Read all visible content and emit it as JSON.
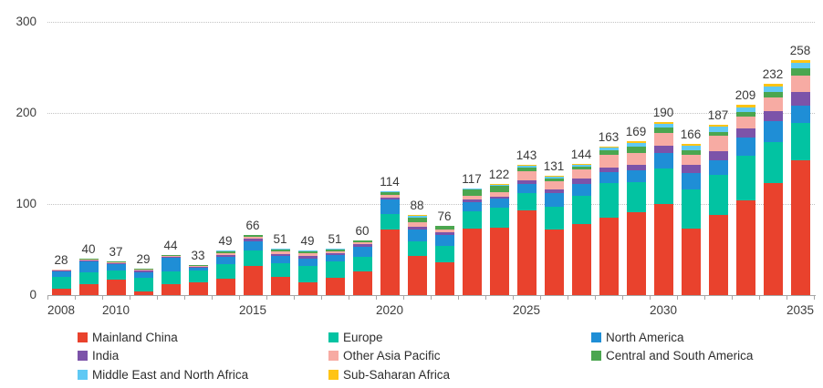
{
  "chart_data": {
    "type": "bar",
    "stacked": true,
    "title": "",
    "xlabel": "",
    "ylabel": "",
    "ylim": [
      0,
      300
    ],
    "yticks": [
      0,
      100,
      200,
      300
    ],
    "grid": "horizontal-dotted",
    "x": [
      2008,
      2009,
      2010,
      2011,
      2012,
      2013,
      2014,
      2015,
      2016,
      2017,
      2018,
      2019,
      2020,
      2021,
      2022,
      2023,
      2024,
      2025,
      2026,
      2027,
      2028,
      2029,
      2030,
      2031,
      2032,
      2033,
      2034,
      2035
    ],
    "x_tick_labels": [
      "2008",
      "2010",
      "2015",
      "2020",
      "2025",
      "2030",
      "2035"
    ],
    "x_tick_years": [
      2008,
      2010,
      2015,
      2020,
      2025,
      2030,
      2035
    ],
    "totals": [
      28,
      40,
      37,
      29,
      44,
      33,
      49,
      66,
      51,
      49,
      51,
      60,
      114,
      88,
      76,
      117,
      122,
      143,
      131,
      144,
      163,
      169,
      190,
      166,
      187,
      209,
      232,
      258
    ],
    "series": [
      {
        "name": "Mainland China",
        "color": "#e9422d",
        "values": [
          7,
          12,
          17,
          4,
          12,
          14,
          18,
          32,
          20,
          14,
          19,
          26,
          72,
          43,
          36,
          73,
          74,
          93,
          72,
          78,
          85,
          91,
          100,
          73,
          88,
          104,
          123,
          148
        ]
      },
      {
        "name": "Europe",
        "color": "#02c3a2",
        "values": [
          13,
          13,
          10,
          15,
          14,
          13,
          16,
          17,
          15,
          18,
          18,
          16,
          17,
          16,
          18,
          19,
          22,
          19,
          25,
          31,
          38,
          33,
          39,
          43,
          44,
          49,
          45,
          41
        ]
      },
      {
        "name": "North America",
        "color": "#1f8ed6",
        "values": [
          6,
          12,
          7,
          6,
          15,
          3,
          8,
          10,
          8,
          8,
          7,
          11,
          16,
          13,
          12,
          10,
          10,
          10,
          15,
          13,
          12,
          13,
          17,
          18,
          16,
          20,
          23,
          19
        ]
      },
      {
        "name": "India",
        "color": "#7c53a9",
        "values": [
          1,
          1,
          1,
          2,
          1,
          1,
          2,
          3,
          2,
          3,
          2,
          3,
          2,
          3,
          3,
          3,
          2,
          4,
          4,
          6,
          5,
          6,
          8,
          9,
          10,
          10,
          11,
          15
        ]
      },
      {
        "name": "Other Asia Pacific",
        "color": "#f7aba3",
        "values": [
          1,
          1,
          1,
          1,
          1,
          1,
          2,
          2,
          3,
          3,
          2,
          2,
          3,
          5,
          3,
          4,
          5,
          10,
          9,
          10,
          14,
          13,
          14,
          11,
          17,
          13,
          15,
          18
        ]
      },
      {
        "name": "Central and South America",
        "color": "#4ba64f",
        "values": [
          0,
          1,
          1,
          1,
          1,
          1,
          2,
          2,
          2,
          2,
          2,
          2,
          3,
          5,
          4,
          7,
          7,
          4,
          3,
          3,
          5,
          7,
          6,
          5,
          4,
          5,
          6,
          8
        ]
      },
      {
        "name": "Middle East and North Africa",
        "color": "#5fc9f4",
        "values": [
          0,
          0,
          0,
          0,
          0,
          0,
          1,
          0,
          1,
          1,
          1,
          0,
          1,
          2,
          0,
          1,
          1,
          2,
          2,
          2,
          3,
          4,
          4,
          5,
          6,
          5,
          6,
          6
        ]
      },
      {
        "name": "Sub-Saharan Africa",
        "color": "#ffc415",
        "values": [
          0,
          0,
          0,
          0,
          0,
          0,
          0,
          0,
          0,
          0,
          0,
          0,
          0,
          1,
          0,
          0,
          1,
          1,
          1,
          1,
          1,
          2,
          2,
          2,
          2,
          3,
          3,
          3
        ]
      }
    ],
    "legend": {
      "position": "bottom",
      "columns": [
        [
          "Mainland China",
          "India",
          "Middle East and North Africa"
        ],
        [
          "Europe",
          "Other Asia Pacific",
          "Sub-Saharan Africa"
        ],
        [
          "North America",
          "Central and South America"
        ]
      ]
    }
  }
}
